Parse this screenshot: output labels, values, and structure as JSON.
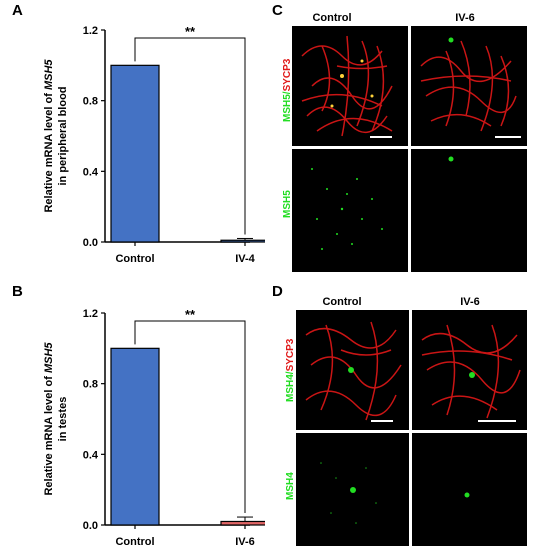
{
  "panel_letters": {
    "a": "A",
    "b": "B",
    "c": "C",
    "d": "D"
  },
  "chart_data": [
    {
      "type": "bar",
      "categories": [
        "Control",
        "IV-4"
      ],
      "values": [
        1.0,
        0.01
      ],
      "errors": [
        0,
        0.01
      ],
      "ylim": [
        0,
        1.2
      ],
      "yticks": [
        "0.0",
        "0.4",
        "0.8",
        "1.2"
      ],
      "ytick_values": [
        0,
        0.4,
        0.8,
        1.2
      ],
      "ylabel_line1_pre": "Relative mRNA level of ",
      "ylabel_line1_gene": "MSH5",
      "ylabel_line2": "in peripheral blood",
      "significance": "**",
      "colors": [
        "#4472c4",
        "#4472c4"
      ]
    },
    {
      "type": "bar",
      "categories": [
        "Control",
        "IV-6"
      ],
      "values": [
        1.0,
        0.02
      ],
      "errors": [
        0,
        0.025
      ],
      "ylim": [
        0,
        1.2
      ],
      "yticks": [
        "0.0",
        "0.4",
        "0.8",
        "1.2"
      ],
      "ytick_values": [
        0,
        0.4,
        0.8,
        1.2
      ],
      "ylabel_line1_pre": "Relative mRNA level of ",
      "ylabel_line1_gene": "MSH5",
      "ylabel_line2": "in testes",
      "significance": "**",
      "colors": [
        "#4472c4",
        "#e06666"
      ]
    }
  ],
  "micrographs": {
    "c": {
      "col_labels": [
        "Control",
        "IV-6"
      ],
      "row1_label_a": "MSH5",
      "row1_label_sep": "/",
      "row1_label_b": "SYCP3",
      "row2_label": "MSH5"
    },
    "d": {
      "col_labels": [
        "Control",
        "IV-6"
      ],
      "row1_label_a": "MSH4",
      "row1_label_sep": "/",
      "row1_label_b": "SYCP3",
      "row2_label": "MSH4"
    }
  },
  "colors": {
    "bar_blue": "#4472c4",
    "bar_red": "#e06666",
    "stain_green": "#22dd22",
    "stain_red": "#e01818"
  }
}
